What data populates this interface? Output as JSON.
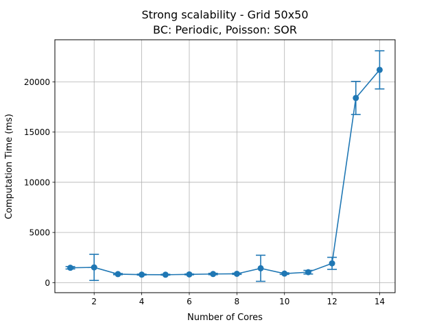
{
  "chart_data": {
    "type": "line",
    "title": "Strong scalability - Grid 50x50",
    "subtitle": "BC: Periodic, Poisson: SOR",
    "xlabel": "Number of Cores",
    "ylabel": "Computation Time (ms)",
    "xlim": [
      0.35,
      14.65
    ],
    "ylim": [
      -1000,
      24200
    ],
    "xticks": [
      2,
      4,
      6,
      8,
      10,
      12,
      14
    ],
    "yticks": [
      0,
      5000,
      10000,
      15000,
      20000
    ],
    "xtick_labels": [
      "2",
      "4",
      "6",
      "8",
      "10",
      "12",
      "14"
    ],
    "ytick_labels": [
      "0",
      "5000",
      "10000",
      "15000",
      "20000"
    ],
    "grid": true,
    "series": [
      {
        "color": "#1f77b4",
        "x": [
          1,
          2,
          3,
          4,
          5,
          6,
          7,
          8,
          9,
          10,
          11,
          12,
          13,
          14
        ],
        "y": [
          1480,
          1520,
          850,
          800,
          790,
          820,
          860,
          880,
          1430,
          900,
          1040,
          1920,
          18400,
          21200
        ],
        "yerr": [
          120,
          1300,
          60,
          50,
          40,
          40,
          70,
          60,
          1300,
          80,
          180,
          600,
          1650,
          1900
        ]
      }
    ]
  }
}
